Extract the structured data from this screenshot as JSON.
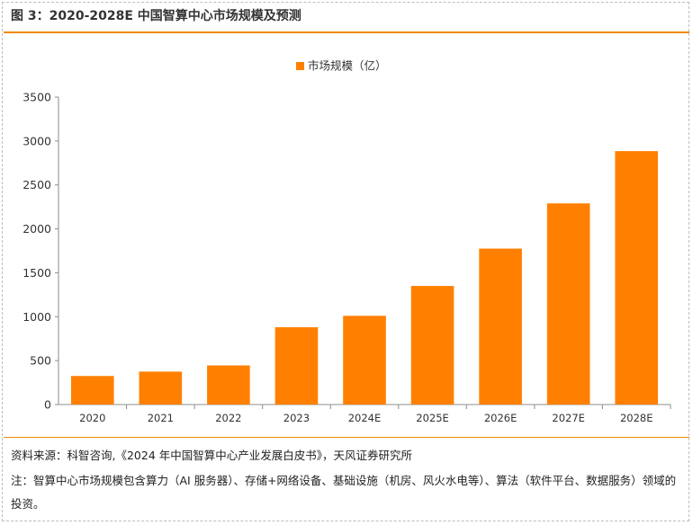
{
  "title": "图 3：2020-2028E 中国智算中心市场规模及预测",
  "source": "资料来源：科智咨询,《2024 年中国智算中心产业发展白皮书》，天风证券研究所",
  "note": "注：智算中心市场规模包含算力（AI 服务器）、存储+网络设备、基础设施（机房、风火水电等）、算法（软件平台、数据服务）领域的投资。",
  "colors": {
    "accent": "#f08a00",
    "bar": "#ff8000"
  },
  "chart_data": {
    "type": "bar",
    "categories": [
      "2020",
      "2021",
      "2022",
      "2023",
      "2024E",
      "2025E",
      "2026E",
      "2027E",
      "2028E"
    ],
    "series": [
      {
        "name": "市场规模（亿）",
        "values": [
          325,
          375,
          445,
          880,
          1010,
          1350,
          1775,
          2290,
          2885
        ]
      }
    ],
    "yticks": [
      "0",
      "500",
      "1000",
      "1500",
      "2000",
      "2500",
      "3000",
      "3500"
    ],
    "ylim": [
      0,
      3500
    ],
    "legend_position": "top-center",
    "grid": false
  }
}
